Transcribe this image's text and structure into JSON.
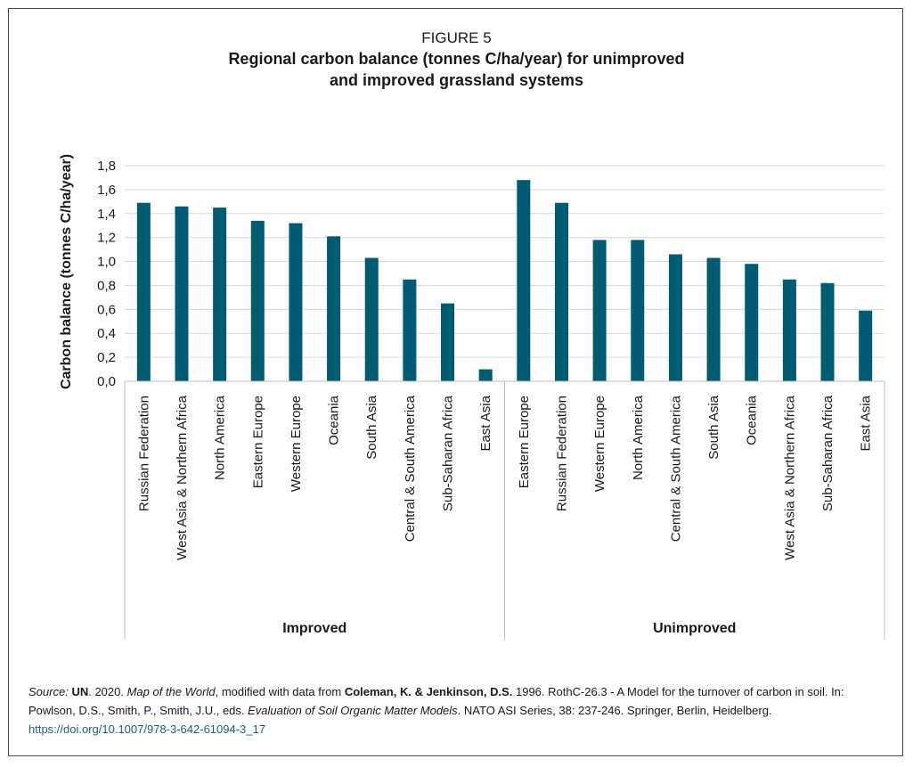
{
  "figure_label": "FIGURE 5",
  "title_line1": "Regional carbon balance (tonnes C/ha/year) for unimproved",
  "title_line2": "and improved grassland systems",
  "colors": {
    "bar": "#005b73",
    "grid": "#d9d9d9",
    "axis": "#bfbfbf",
    "text": "#1a1a1a",
    "link": "#1f5f85"
  },
  "chart_data": {
    "type": "bar",
    "title": "Regional carbon balance (tonnes C/ha/year) for unimproved and improved grassland systems",
    "ylabel": "Carbon balance (tonnes C/ha/year)",
    "xlabel": "",
    "ylim": [
      0,
      1.8
    ],
    "ytick_step": 0.2,
    "yticks": [
      "0,0",
      "0,2",
      "0,4",
      "0,6",
      "0,8",
      "1,0",
      "1,2",
      "1,4",
      "1,6",
      "1,8"
    ],
    "grid": true,
    "legend": "none",
    "groups": [
      {
        "name": "Improved",
        "categories": [
          "Russian Federation",
          "West Asia & Northern Africa",
          "North America",
          "Eastern Europe",
          "Western Europe",
          "Oceania",
          "South Asia",
          "Central & South America",
          "Sub-Saharan Africa",
          "East Asia"
        ],
        "values": [
          1.49,
          1.46,
          1.45,
          1.34,
          1.32,
          1.21,
          1.03,
          0.85,
          0.65,
          0.1
        ]
      },
      {
        "name": "Unimproved",
        "categories": [
          "Eastern Europe",
          "Russian Federation",
          "Western Europe",
          "North America",
          "Central & South America",
          "South Asia",
          "Oceania",
          "West Asia & Northern Africa",
          "Sub-Saharan Africa",
          "East Asia"
        ],
        "values": [
          1.68,
          1.49,
          1.18,
          1.18,
          1.06,
          1.03,
          0.98,
          0.85,
          0.82,
          0.59
        ]
      }
    ]
  },
  "source": {
    "label": "Source:",
    "org": "UN",
    "year1": ". 2020. ",
    "map_title": "Map of the World",
    "mid": ", modified with data from ",
    "authors": "Coleman, K. & Jenkinson, D.S.",
    "ref": " 1996. RothC-26.3 - A Model for the turnover of carbon in soil. In: Powlson, D.S., Smith, P., Smith, J.U., eds. ",
    "book": "Evaluation of Soil Organic Matter Models",
    "tail": ". NATO ASI Series, 38: 237-246. Springer, Berlin, Heidelberg. ",
    "url": "https://doi.org/10.1007/978-3-642-61094-3_17"
  }
}
